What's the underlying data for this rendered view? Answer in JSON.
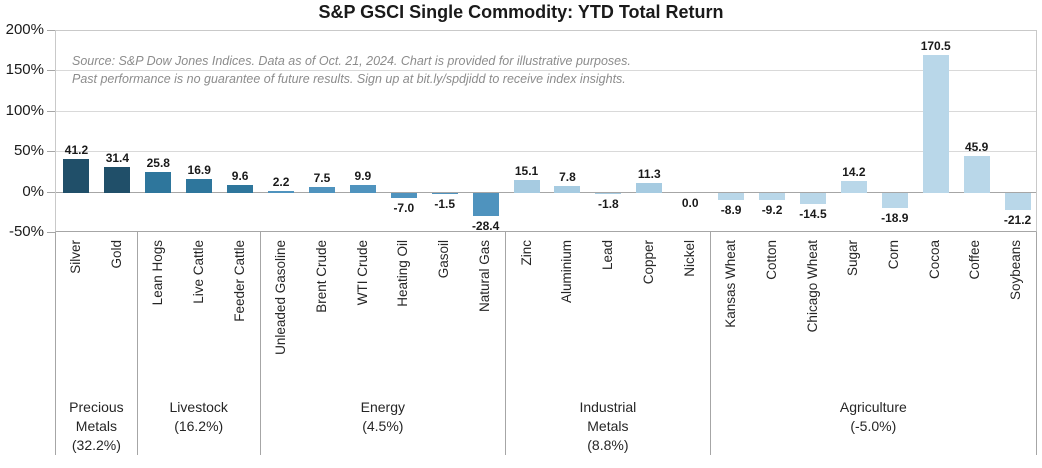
{
  "title": "S&P GSCI Single Commodity: YTD Total Return",
  "source_note": {
    "line1": "Source: S&P Dow Jones Indices.  Data as of Oct. 21, 2024. Chart is provided for illustrative purposes.",
    "line2": "Past performance is no guarantee of future results. Sign up at bit.ly/spdjidd to receive index insights."
  },
  "chart_data": {
    "type": "bar",
    "title": "S&P GSCI Single Commodity: YTD Total Return",
    "ylim": [
      -50,
      200
    ],
    "yticks": [
      200,
      150,
      100,
      50,
      0,
      -50
    ],
    "ytick_suffix": "%",
    "grid": true,
    "value_labels": "one_decimal",
    "groups": [
      {
        "name": "Precious Metals",
        "label_lines": [
          "Precious",
          "Metals",
          "(32.2%)"
        ],
        "color": "#204f69",
        "categories": [
          "Silver",
          "Gold"
        ],
        "values": [
          41.2,
          31.4
        ]
      },
      {
        "name": "Livestock",
        "label_lines": [
          "Livestock",
          "(16.2%)"
        ],
        "color": "#2e769c",
        "categories": [
          "Lean Hogs",
          "Live Cattle",
          "Feeder Cattle"
        ],
        "values": [
          25.8,
          16.9,
          9.6
        ]
      },
      {
        "name": "Energy",
        "label_lines": [
          "Energy",
          "(4.5%)"
        ],
        "color": "#4f93be",
        "categories": [
          "Unleaded Gasoline",
          "Brent Crude",
          "WTI Crude",
          "Heating Oil",
          "Gasoil",
          "Natural Gas"
        ],
        "values": [
          2.2,
          7.5,
          9.9,
          -7.0,
          -1.5,
          -28.4
        ]
      },
      {
        "name": "Industrial Metals",
        "label_lines": [
          "Industrial",
          "Metals",
          "(8.8%)"
        ],
        "color": "#a6cbe1",
        "categories": [
          "Zinc",
          "Aluminium",
          "Lead",
          "Copper",
          "Nickel"
        ],
        "values": [
          15.1,
          7.8,
          -1.8,
          11.3,
          0.0
        ]
      },
      {
        "name": "Agriculture",
        "label_lines": [
          "Agriculture",
          "(-5.0%)"
        ],
        "color": "#b9d7e9",
        "categories": [
          "Kansas Wheat",
          "Cotton",
          "Chicago Wheat",
          "Sugar",
          "Corn",
          "Cocoa",
          "Coffee",
          "Soybeans"
        ],
        "values": [
          -8.9,
          -9.2,
          -14.5,
          14.2,
          -18.9,
          170.5,
          45.9,
          -21.2
        ]
      }
    ]
  }
}
